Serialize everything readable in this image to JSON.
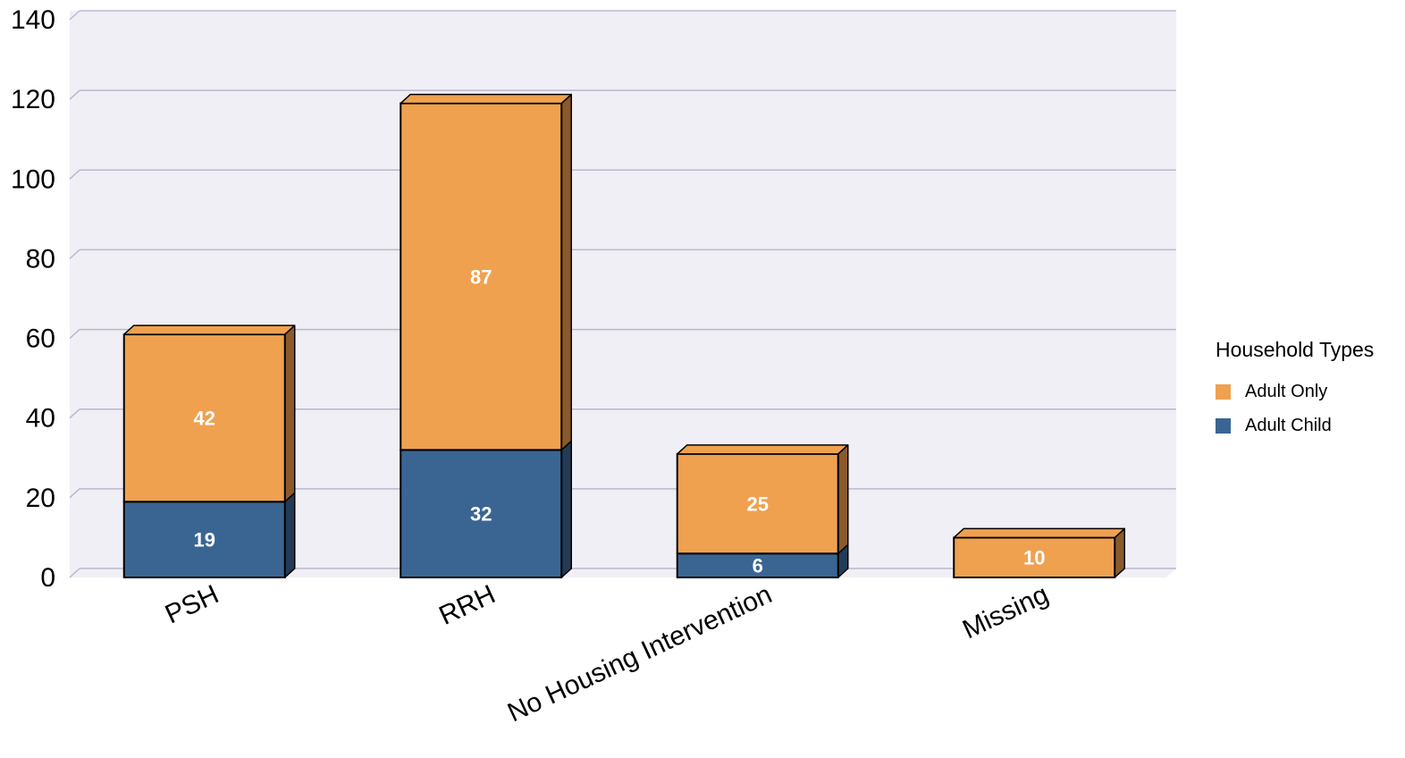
{
  "chart_data": {
    "type": "bar",
    "stacked": true,
    "categories": [
      "PSH",
      "RRH",
      "No Housing Intervention",
      "Missing"
    ],
    "series": [
      {
        "name": "Adult Child",
        "values": [
          19,
          32,
          6,
          0
        ],
        "color": "#3a6593",
        "side_color": "#243b56"
      },
      {
        "name": "Adult Only",
        "values": [
          42,
          87,
          25,
          10
        ],
        "color": "#efa150",
        "side_color": "#8a5a2b"
      }
    ],
    "ylim": [
      0,
      140
    ],
    "yticks": [
      0,
      20,
      40,
      60,
      80,
      100,
      120,
      140
    ],
    "grid": true,
    "legend": {
      "title": "Household Types",
      "position": "right",
      "order": [
        "Adult Only",
        "Adult Child"
      ]
    },
    "plot_background": "#f0eff5",
    "title": "",
    "xlabel": "",
    "ylabel": ""
  }
}
